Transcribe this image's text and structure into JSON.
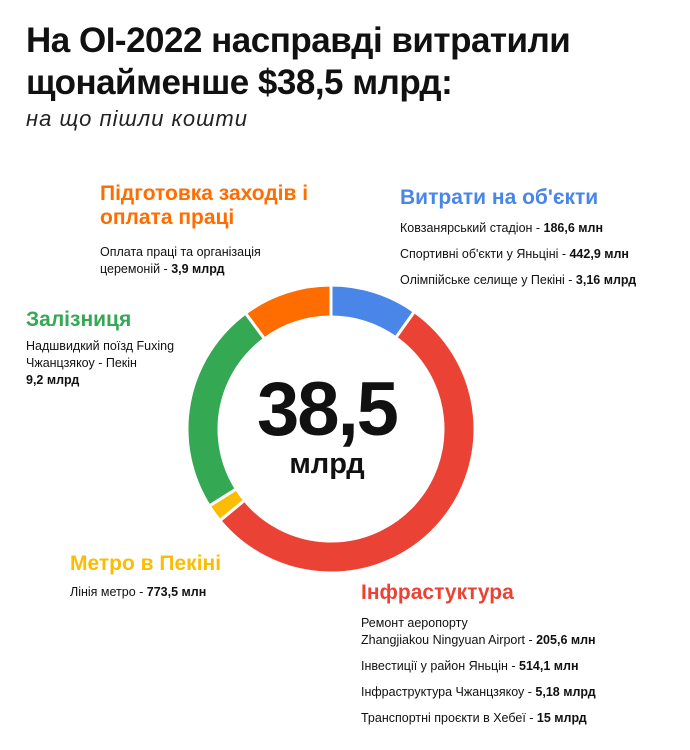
{
  "title": "На ОІ-2022 насправді витратили щонайменше $38,5 млрд:",
  "subtitle": "на що пішли кошти",
  "center": {
    "value": "38,5",
    "unit": "млрд"
  },
  "colors": {
    "blue": "#4a86e8",
    "red": "#ea4335",
    "yellow": "#fbbc04",
    "green": "#34a853",
    "orange": "#ff6d01"
  },
  "sections": {
    "objects": {
      "heading": "Витрати на об'єкти",
      "items": [
        {
          "label": "Ковзанярський стадіон - ",
          "value": "186,6 млн"
        },
        {
          "label": "Спортивні об'єкти у Яньціні - ",
          "value": "442,9 млн"
        },
        {
          "label": "Олімпійське селище у Пекіні - ",
          "value": "3,16 млрд"
        }
      ]
    },
    "preparation": {
      "heading_line1": "Підготовка заходів і",
      "heading_line2": "оплата праці",
      "line1": "Оплата праці та організація",
      "line2": "церемоній - ",
      "value": "3,9 млрд"
    },
    "railway": {
      "heading": "Залізниця",
      "line1": "Надшвидкий поїзд Fuxing",
      "line2": "Чжанцзякоу - Пекін",
      "value": "9,2 млрд"
    },
    "metro": {
      "heading": "Метро в Пекіні",
      "label": "Лінія метро - ",
      "value": "773,5 млн"
    },
    "infrastructure": {
      "heading": "Інфрастуктура",
      "items": [
        {
          "line1": "Ремонт аеропорту",
          "label": "Zhangjiakou Ningyuan Airport - ",
          "value": "205,6 млн"
        },
        {
          "label": "Інвестиції у район Яньцін - ",
          "value": "514,1 млн"
        },
        {
          "label": "Інфраструктура Чжанцзякоу - ",
          "value": "5,18 млрд"
        },
        {
          "label": "Транспортні проєкти в Хебеї - ",
          "value": "15 млрд"
        }
      ]
    }
  },
  "chart_data": {
    "type": "pie",
    "donut": true,
    "unit": "млрд $",
    "slices": [
      {
        "category": "Витрати на об'єкти",
        "value": 3.79,
        "color": "#4a86e8"
      },
      {
        "category": "Інфрастуктура",
        "value": 20.9,
        "color": "#ea4335"
      },
      {
        "category": "Метро в Пекіні",
        "value": 0.77,
        "color": "#fbbc04"
      },
      {
        "category": "Залізниця",
        "value": 9.2,
        "color": "#34a853"
      },
      {
        "category": "Підготовка заходів і оплата праці",
        "value": 3.9,
        "color": "#ff6d01"
      }
    ],
    "total": 38.5
  }
}
